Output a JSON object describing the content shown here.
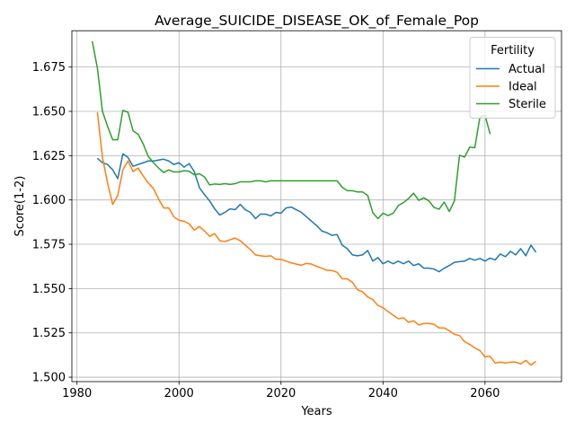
{
  "chart_data": {
    "type": "line",
    "title": "Average_SUICIDE_DISEASE_OK_of_Female_Pop",
    "xlabel": "Years",
    "ylabel": "Score(1-2)",
    "xlim": [
      1979,
      2075
    ],
    "ylim": [
      1.4975,
      1.6955
    ],
    "xticks": [
      1980,
      2000,
      2020,
      2040,
      2060
    ],
    "xtick_labels": [
      "1980",
      "2000",
      "2020",
      "2040",
      "2060"
    ],
    "yticks": [
      1.5,
      1.525,
      1.55,
      1.575,
      1.6,
      1.625,
      1.65,
      1.675
    ],
    "ytick_labels": [
      "1.500",
      "1.525",
      "1.550",
      "1.575",
      "1.600",
      "1.625",
      "1.650",
      "1.675"
    ],
    "grid": true,
    "legend": {
      "title": "Fertility",
      "position": "top-right"
    },
    "series": [
      {
        "name": "Actual",
        "color": "#1f77b4",
        "x": [
          1984,
          1985,
          1986,
          1987,
          1988,
          1989,
          1990,
          1991,
          1992,
          1993,
          1994,
          1995,
          1996,
          1997,
          1998,
          1999,
          2000,
          2001,
          2002,
          2003,
          2004,
          2005,
          2006,
          2007,
          2008,
          2009,
          2010,
          2011,
          2012,
          2013,
          2014,
          2015,
          2016,
          2017,
          2018,
          2019,
          2020,
          2021,
          2022,
          2023,
          2024,
          2025,
          2026,
          2027,
          2028,
          2029,
          2030,
          2031,
          2032,
          2033,
          2034,
          2035,
          2036,
          2037,
          2038,
          2039,
          2040,
          2041,
          2042,
          2043,
          2044,
          2045,
          2046,
          2047,
          2048,
          2049,
          2050,
          2051,
          2052,
          2053,
          2054,
          2055,
          2056,
          2057,
          2058,
          2059,
          2060,
          2061,
          2062,
          2063,
          2064,
          2065,
          2066,
          2067,
          2068,
          2069,
          2070
        ],
        "y": [
          1.6235,
          1.621,
          1.62,
          1.617,
          1.612,
          1.626,
          1.624,
          1.619,
          1.62,
          1.621,
          1.622,
          1.622,
          1.6225,
          1.623,
          1.622,
          1.62,
          1.621,
          1.6185,
          1.6205,
          1.616,
          1.607,
          1.603,
          1.5995,
          1.595,
          1.5915,
          1.593,
          1.595,
          1.5945,
          1.5975,
          1.5945,
          1.593,
          1.5895,
          1.592,
          1.592,
          1.591,
          1.593,
          1.5925,
          1.5955,
          1.596,
          1.5945,
          1.593,
          1.5905,
          1.588,
          1.5855,
          1.5825,
          1.5815,
          1.58,
          1.5805,
          1.5745,
          1.5725,
          1.569,
          1.5685,
          1.569,
          1.5715,
          1.5655,
          1.5675,
          1.564,
          1.5655,
          1.564,
          1.5655,
          1.564,
          1.5655,
          1.563,
          1.564,
          1.5615,
          1.5615,
          1.561,
          1.5595,
          1.5615,
          1.563,
          1.5648,
          1.5652,
          1.5655,
          1.567,
          1.566,
          1.567,
          1.5655,
          1.5672,
          1.5662,
          1.5695,
          1.568,
          1.571,
          1.569,
          1.5725,
          1.5685,
          1.5745,
          1.5705
        ]
      },
      {
        "name": "Ideal",
        "color": "#ff7f0e",
        "x": [
          1984,
          1985,
          1986,
          1987,
          1988,
          1989,
          1990,
          1991,
          1992,
          1993,
          1994,
          1995,
          1996,
          1997,
          1998,
          1999,
          2000,
          2001,
          2002,
          2003,
          2004,
          2005,
          2006,
          2007,
          2008,
          2009,
          2010,
          2011,
          2012,
          2013,
          2014,
          2015,
          2016,
          2017,
          2018,
          2019,
          2020,
          2021,
          2022,
          2023,
          2024,
          2025,
          2026,
          2027,
          2028,
          2029,
          2030,
          2031,
          2032,
          2033,
          2034,
          2035,
          2036,
          2037,
          2038,
          2039,
          2040,
          2041,
          2042,
          2043,
          2044,
          2045,
          2046,
          2047,
          2048,
          2049,
          2050,
          2051,
          2052,
          2053,
          2054,
          2055,
          2056,
          2057,
          2058,
          2059,
          2060,
          2061,
          2062,
          2063,
          2064,
          2065,
          2066,
          2067,
          2068,
          2069,
          2070
        ],
        "y": [
          1.6495,
          1.624,
          1.6095,
          1.5975,
          1.6025,
          1.617,
          1.622,
          1.616,
          1.618,
          1.6135,
          1.6095,
          1.6065,
          1.6005,
          1.5955,
          1.5955,
          1.5905,
          1.5885,
          1.588,
          1.5865,
          1.583,
          1.585,
          1.5825,
          1.5795,
          1.581,
          1.577,
          1.5765,
          1.5775,
          1.5785,
          1.577,
          1.5745,
          1.572,
          1.569,
          1.5685,
          1.5682,
          1.5685,
          1.5665,
          1.5665,
          1.5655,
          1.5645,
          1.5638,
          1.5632,
          1.5642,
          1.5638,
          1.5625,
          1.5615,
          1.5603,
          1.5602,
          1.5592,
          1.5555,
          1.5555,
          1.5535,
          1.5493,
          1.5482,
          1.5453,
          1.5438,
          1.5405,
          1.5392,
          1.537,
          1.535,
          1.533,
          1.5335,
          1.531,
          1.5318,
          1.5295,
          1.5303,
          1.5303,
          1.5298,
          1.5278,
          1.5278,
          1.5262,
          1.5242,
          1.5235,
          1.52,
          1.5185,
          1.5165,
          1.515,
          1.5115,
          1.5118,
          1.508,
          1.5085,
          1.508,
          1.5085,
          1.5085,
          1.5075,
          1.5095,
          1.5068,
          1.509
        ]
      },
      {
        "name": "Sterile",
        "color": "#2ca02c",
        "x": [
          1983,
          1984,
          1985,
          1986,
          1987,
          1988,
          1989,
          1990,
          1991,
          1992,
          1993,
          1994,
          1995,
          1996,
          1997,
          1998,
          1999,
          2000,
          2001,
          2002,
          2003,
          2004,
          2005,
          2006,
          2007,
          2008,
          2009,
          2010,
          2011,
          2012,
          2013,
          2014,
          2015,
          2016,
          2017,
          2018,
          2019,
          2020,
          2021,
          2022,
          2023,
          2024,
          2025,
          2026,
          2027,
          2028,
          2029,
          2030,
          2031,
          2032,
          2033,
          2034,
          2035,
          2036,
          2037,
          2038,
          2039,
          2040,
          2041,
          2042,
          2043,
          2044,
          2045,
          2046,
          2047,
          2048,
          2049,
          2050,
          2051,
          2052,
          2053,
          2054,
          2055,
          2056,
          2057,
          2058,
          2059,
          2060,
          2061
        ],
        "y": [
          1.6895,
          1.6745,
          1.65,
          1.6415,
          1.634,
          1.634,
          1.6505,
          1.6495,
          1.639,
          1.637,
          1.6315,
          1.6245,
          1.621,
          1.618,
          1.6155,
          1.617,
          1.6158,
          1.6158,
          1.6165,
          1.6162,
          1.6142,
          1.6148,
          1.613,
          1.6085,
          1.609,
          1.6088,
          1.6092,
          1.6088,
          1.6092,
          1.6102,
          1.6102,
          1.6102,
          1.6108,
          1.6108,
          1.6102,
          1.6108,
          1.6108,
          1.6108,
          1.6108,
          1.6108,
          1.6108,
          1.6108,
          1.6108,
          1.6108,
          1.6108,
          1.6108,
          1.6108,
          1.6108,
          1.6108,
          1.6072,
          1.6052,
          1.6052,
          1.6045,
          1.6045,
          1.6025,
          1.5928,
          1.5895,
          1.5925,
          1.5912,
          1.5925,
          1.5968,
          1.5985,
          1.6008,
          1.6038,
          1.5998,
          1.6012,
          1.5995,
          1.5958,
          1.5948,
          1.5988,
          1.5935,
          1.5995,
          1.6252,
          1.6242,
          1.6298,
          1.6295,
          1.6468,
          1.6478,
          1.6372
        ]
      }
    ]
  }
}
